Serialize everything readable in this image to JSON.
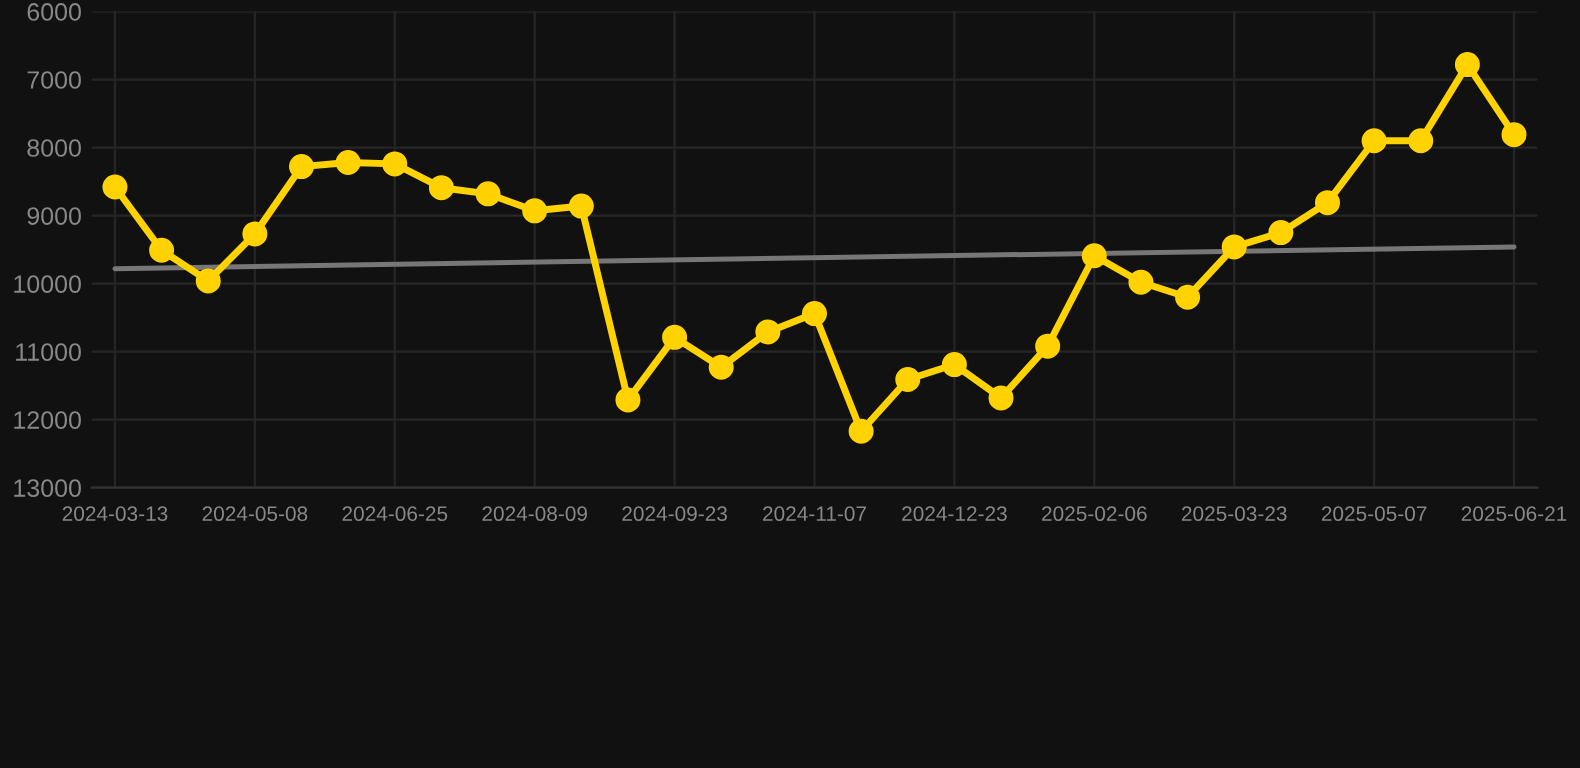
{
  "chart_data": {
    "type": "line",
    "categories": [
      "2024-03-13",
      null,
      null,
      "2024-05-08",
      null,
      null,
      "2024-06-25",
      null,
      null,
      "2024-08-09",
      null,
      null,
      "2024-09-23",
      null,
      null,
      "2024-11-07",
      null,
      null,
      "2024-12-23",
      null,
      null,
      "2025-02-06",
      null,
      null,
      "2025-03-23",
      null,
      null,
      "2025-05-07",
      null,
      null,
      "2025-06-21"
    ],
    "series": [
      {
        "color": "#ffd200",
        "marker": "circle",
        "values": [
          8580,
          9510,
          9960,
          9270,
          8280,
          8220,
          8240,
          8590,
          8680,
          8930,
          8860,
          11710,
          10790,
          11230,
          10710,
          10440,
          12170,
          11410,
          11190,
          11680,
          10920,
          9590,
          9980,
          10200,
          9460,
          9250,
          8810,
          7900,
          7900,
          6780,
          7810
        ]
      },
      {
        "type": "line",
        "color": "#777777",
        "marker": "none",
        "values": [
          9780,
          null,
          null,
          null,
          null,
          null,
          null,
          null,
          null,
          null,
          null,
          null,
          null,
          null,
          null,
          null,
          null,
          null,
          null,
          null,
          null,
          null,
          null,
          null,
          null,
          null,
          null,
          null,
          null,
          null,
          9460
        ]
      }
    ],
    "ylim": [
      13000,
      6000
    ],
    "yticks": [
      6000,
      7000,
      8000,
      9000,
      10000,
      11000,
      12000,
      13000
    ],
    "grid": true,
    "line_style": "solid"
  }
}
